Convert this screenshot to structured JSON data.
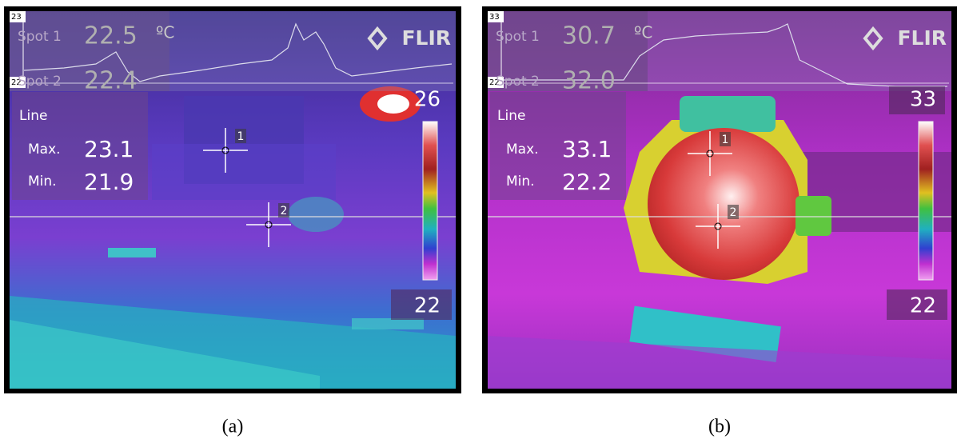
{
  "panels": [
    {
      "graph_max": "23",
      "graph_min": "22",
      "spots": [
        {
          "label": "Spot 1",
          "value": "22.5"
        },
        {
          "label": "Spot 2",
          "value": "22.4"
        }
      ],
      "unit": "ºC",
      "logo": "FLIR",
      "line_box": {
        "title": "Line",
        "max_label": "Max.",
        "max_value": "23.1",
        "min_label": "Min.",
        "min_value": "21.9"
      },
      "markers": [
        "1",
        "2"
      ],
      "scale_max": "26",
      "scale_min": "22",
      "caption": "(a)"
    },
    {
      "graph_max": "33",
      "graph_min": "22",
      "spots": [
        {
          "label": "Spot 1",
          "value": "30.7"
        },
        {
          "label": "Spot 2",
          "value": "32.0"
        }
      ],
      "unit": "ºC",
      "logo": "FLIR",
      "line_box": {
        "title": "Line",
        "max_label": "Max.",
        "max_value": "33.1",
        "min_label": "Min.",
        "min_value": "22.2"
      },
      "markers": [
        "1",
        "2"
      ],
      "scale_max": "33",
      "scale_min": "22",
      "caption": "(b)"
    }
  ]
}
